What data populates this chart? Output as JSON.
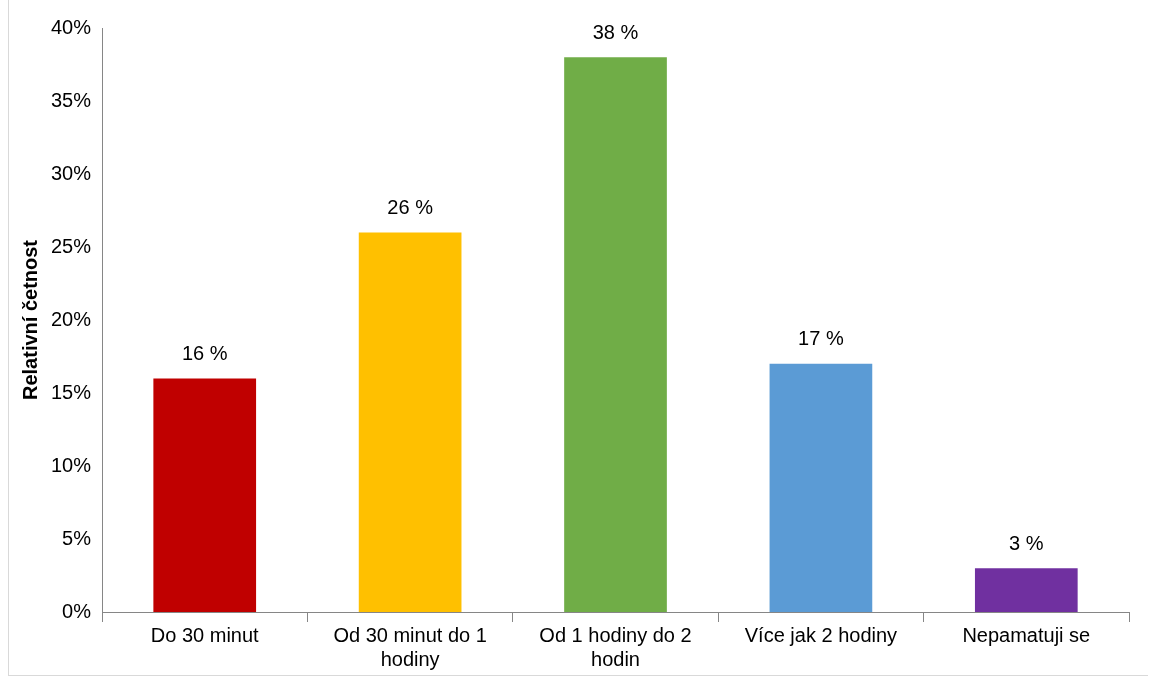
{
  "chart_data": {
    "type": "bar",
    "ylabel": "Relativní četnost",
    "categories": [
      "Do 30 minut",
      "Od 30 minut do 1 hodiny",
      "Od 1 hodiny do 2 hodin",
      "Více jak 2 hodiny",
      "Nepamatuji se"
    ],
    "values": [
      16,
      26,
      38,
      17,
      3
    ],
    "colors": [
      "#c00000",
      "#ffc000",
      "#70ad47",
      "#5b9bd5",
      "#7030a0"
    ],
    "value_labels": [
      "16 %",
      "26 %",
      "38 %",
      "17 %",
      "3 %"
    ],
    "ylim": [
      0,
      40
    ],
    "yticks": [
      {
        "value": 0,
        "label": "0%"
      },
      {
        "value": 5,
        "label": "5%"
      },
      {
        "value": 10,
        "label": "10%"
      },
      {
        "value": 15,
        "label": "15%"
      },
      {
        "value": 20,
        "label": "20%"
      },
      {
        "value": 25,
        "label": "25%"
      },
      {
        "value": 30,
        "label": "30%"
      },
      {
        "value": 35,
        "label": "35%"
      },
      {
        "value": 40,
        "label": "40%"
      }
    ],
    "grid": false,
    "legend": false
  }
}
